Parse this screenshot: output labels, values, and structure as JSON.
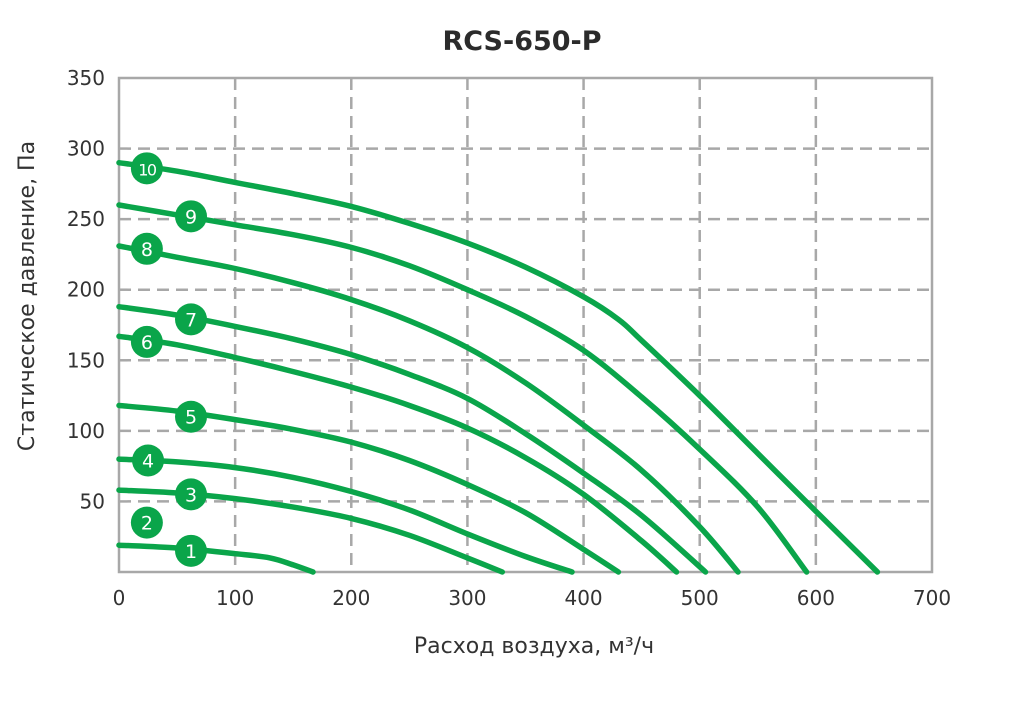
{
  "chart_data": {
    "type": "line",
    "title": "RCS-650-P",
    "xlabel": "Расход воздуха, м³/ч",
    "ylabel": "Статическое давление, Па",
    "xlim": [
      0,
      700
    ],
    "ylim": [
      0,
      350
    ],
    "xticks": [
      "0",
      "100",
      "200",
      "300",
      "400",
      "500",
      "600",
      "700"
    ],
    "yticks": [
      "50",
      "100",
      "150",
      "200",
      "250",
      "300",
      "350"
    ],
    "grid": true,
    "color": "#0aa54a",
    "series": [
      {
        "name": "1",
        "label_at": [
          62,
          15
        ],
        "x": [
          0,
          50,
          100,
          130,
          150,
          167
        ],
        "y": [
          19,
          17,
          13,
          10,
          5,
          0
        ]
      },
      {
        "name": "2",
        "label_at": [
          24,
          35
        ],
        "x": [],
        "y": []
      },
      {
        "name": "3",
        "label_at": [
          62,
          55
        ],
        "x": [
          0,
          50,
          100,
          150,
          200,
          250,
          300,
          330
        ],
        "y": [
          58,
          56,
          52,
          46,
          38,
          26,
          10,
          0
        ]
      },
      {
        "name": "4",
        "label_at": [
          25,
          79
        ],
        "x": [
          0,
          50,
          100,
          150,
          200,
          250,
          300,
          350,
          390
        ],
        "y": [
          80,
          78,
          74,
          67,
          57,
          44,
          27,
          11,
          0
        ]
      },
      {
        "name": "5",
        "label_at": [
          62,
          110
        ],
        "x": [
          0,
          50,
          100,
          150,
          200,
          250,
          300,
          350,
          400,
          430
        ],
        "y": [
          118,
          114,
          108,
          101,
          92,
          79,
          62,
          42,
          16,
          0
        ]
      },
      {
        "name": "6",
        "label_at": [
          24,
          163
        ],
        "x": [
          0,
          50,
          100,
          150,
          200,
          250,
          300,
          350,
          400,
          450,
          480
        ],
        "y": [
          167,
          161,
          152,
          142,
          131,
          118,
          102,
          81,
          55,
          22,
          0
        ]
      },
      {
        "name": "7",
        "label_at": [
          62,
          179
        ],
        "x": [
          0,
          50,
          100,
          150,
          200,
          250,
          300,
          350,
          400,
          450,
          505
        ],
        "y": [
          188,
          182,
          174,
          165,
          154,
          140,
          123,
          98,
          70,
          40,
          0
        ]
      },
      {
        "name": "8",
        "label_at": [
          24,
          229
        ],
        "x": [
          0,
          50,
          100,
          150,
          200,
          250,
          300,
          350,
          400,
          450,
          500,
          533
        ],
        "y": [
          231,
          223,
          215,
          205,
          193,
          178,
          159,
          134,
          104,
          72,
          32,
          0
        ]
      },
      {
        "name": "9",
        "label_at": [
          62,
          252
        ],
        "x": [
          0,
          50,
          100,
          150,
          200,
          250,
          300,
          350,
          400,
          450,
          500,
          550,
          592
        ],
        "y": [
          260,
          253,
          246,
          239,
          230,
          217,
          200,
          181,
          157,
          124,
          87,
          46,
          0
        ]
      },
      {
        "name": "10",
        "label_at": [
          24,
          286
        ],
        "x": [
          0,
          50,
          100,
          150,
          200,
          250,
          300,
          350,
          400,
          430,
          450,
          500,
          550,
          600,
          653
        ],
        "y": [
          290,
          284,
          276,
          268,
          259,
          247,
          233,
          216,
          195,
          179,
          164,
          125,
          84,
          43,
          0
        ]
      }
    ]
  }
}
